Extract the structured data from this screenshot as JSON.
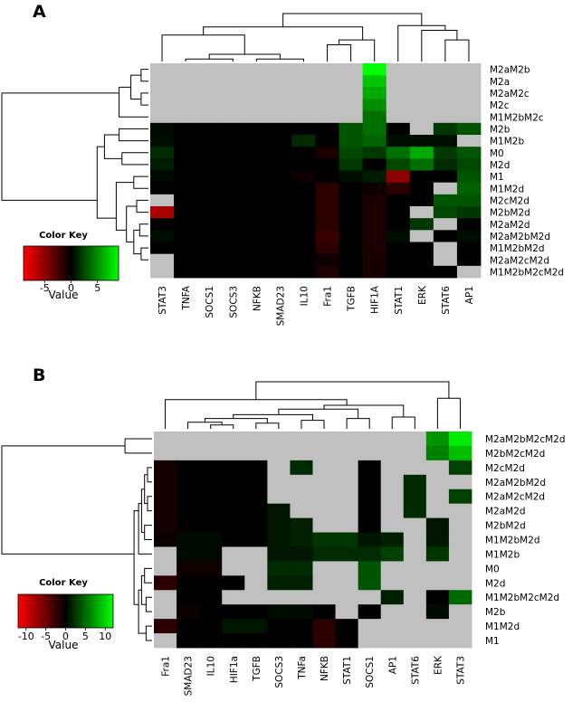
{
  "chart_data": [
    {
      "type": "heatmap",
      "panel_label": "A",
      "columns": [
        "STAT3",
        "TNFA",
        "SOCS1",
        "SOCS3",
        "NFKB",
        "SMAD23",
        "IL10",
        "Fra1",
        "TGFB",
        "HIF1A",
        "STAT1",
        "ERK",
        "STAT6",
        "AP1"
      ],
      "rows": [
        "M2aM2b",
        "M2a",
        "M2aM2c",
        "M2c",
        "M1M2bM2c",
        "M2b",
        "M1M2b",
        "M0",
        "M2d",
        "M1",
        "M1M2d",
        "M2cM2d",
        "M2bM2d",
        "M2aM2d",
        "M2aM2bM2d",
        "M1M2bM2d",
        "M2aM2cM2d",
        "M1M2bM2cM2d"
      ],
      "values": [
        [
          null,
          null,
          null,
          null,
          null,
          null,
          null,
          null,
          null,
          9,
          null,
          null,
          null,
          null
        ],
        [
          null,
          null,
          null,
          null,
          null,
          null,
          null,
          null,
          null,
          7,
          null,
          null,
          null,
          null
        ],
        [
          null,
          null,
          null,
          null,
          null,
          null,
          null,
          null,
          null,
          6,
          null,
          null,
          null,
          null
        ],
        [
          null,
          null,
          null,
          null,
          null,
          null,
          null,
          null,
          null,
          5,
          null,
          null,
          null,
          null
        ],
        [
          null,
          null,
          null,
          null,
          null,
          null,
          null,
          null,
          null,
          4,
          null,
          null,
          null,
          null
        ],
        [
          0.3,
          0,
          0,
          0,
          0,
          0,
          0,
          0,
          3,
          4,
          0,
          null,
          2,
          3
        ],
        [
          0.5,
          0,
          0,
          0,
          0,
          0,
          1.5,
          0,
          3,
          3.5,
          0.5,
          0.5,
          0.5,
          null
        ],
        [
          1.5,
          0,
          0,
          0,
          0,
          0,
          0,
          -1,
          2.5,
          2,
          4,
          6,
          2,
          3
        ],
        [
          1,
          0,
          0,
          0,
          0,
          0,
          0,
          0,
          2,
          0,
          2.5,
          4,
          1.5,
          2.5
        ],
        [
          0.3,
          0,
          0,
          0,
          0,
          0,
          -0.5,
          0,
          0.5,
          1,
          -5,
          0,
          0,
          3
        ],
        [
          0,
          0,
          0,
          0,
          0,
          0,
          0,
          -1.5,
          0,
          -0.5,
          -1.5,
          0,
          null,
          3.5
        ],
        [
          null,
          0,
          0,
          0,
          0,
          0,
          0,
          -1.5,
          0,
          -1,
          0,
          0,
          3,
          3
        ],
        [
          -6,
          0,
          0,
          0,
          0,
          0,
          0,
          -1.5,
          0,
          -1,
          0,
          null,
          2.5,
          2
        ],
        [
          0,
          0,
          0,
          0,
          0,
          0,
          0,
          -1.5,
          0,
          -1,
          0,
          2,
          null,
          0
        ],
        [
          0.5,
          0,
          0,
          0,
          0,
          0,
          0,
          -2,
          0,
          -1,
          0.5,
          null,
          0,
          0.5
        ],
        [
          0,
          0,
          0,
          0,
          0,
          0,
          0,
          -1.5,
          0,
          -1,
          0,
          0,
          null,
          0
        ],
        [
          null,
          0,
          0,
          0,
          0,
          0,
          0,
          -0.5,
          0,
          -0.8,
          0,
          0,
          null,
          0
        ],
        [
          null,
          0,
          0,
          0,
          0,
          0,
          0,
          -1,
          0,
          -0.8,
          0,
          0,
          0,
          null
        ]
      ],
      "color_key": {
        "title": "Color Key",
        "xlabel": "Value",
        "ticks": [
          -5,
          0,
          5
        ],
        "range": [
          -9,
          9
        ]
      },
      "colors": {
        "low": "#ff0000",
        "mid": "#000000",
        "high": "#00ff00",
        "missing": "#c0c0c0"
      }
    },
    {
      "type": "heatmap",
      "panel_label": "B",
      "columns": [
        "Fra1",
        "SMAD23",
        "IL10",
        "HIF1a",
        "TGFB",
        "SOCS3",
        "TNFa",
        "NFKB",
        "STAT1",
        "SOCS1",
        "AP1",
        "STAT6",
        "ERK",
        "STAT3"
      ],
      "rows": [
        "M2aM2bM2cM2d",
        "M2bM2cM2d",
        "M2cM2d",
        "M2aM2bM2d",
        "M2aM2cM2d",
        "M2aM2d",
        "M2bM2d",
        "M1M2bM2d",
        "M1M2b",
        "M0",
        "M2d",
        "M1M2bM2cM2d",
        "M2b",
        "M1M2d",
        "M1"
      ],
      "values": [
        [
          null,
          null,
          null,
          null,
          null,
          null,
          null,
          null,
          null,
          null,
          null,
          null,
          7,
          11
        ],
        [
          null,
          null,
          null,
          null,
          null,
          null,
          null,
          null,
          null,
          null,
          null,
          null,
          6,
          9
        ],
        [
          -1,
          0,
          0,
          0,
          0,
          null,
          2,
          null,
          null,
          0,
          null,
          null,
          null,
          3
        ],
        [
          -1,
          0,
          0,
          0,
          0,
          null,
          null,
          null,
          null,
          0,
          null,
          2,
          null,
          null
        ],
        [
          -1,
          0,
          0,
          0,
          0,
          null,
          null,
          null,
          null,
          0,
          null,
          2,
          null,
          3
        ],
        [
          -1,
          0,
          0,
          0,
          0,
          1,
          null,
          null,
          null,
          0,
          null,
          2,
          null,
          null
        ],
        [
          -1,
          0,
          0,
          0,
          0,
          1,
          1.5,
          null,
          null,
          0,
          null,
          null,
          1,
          null
        ],
        [
          -0.5,
          0.5,
          0.5,
          0,
          0,
          1,
          1.5,
          2.5,
          2.5,
          1,
          1.5,
          null,
          1,
          null
        ],
        [
          null,
          0.5,
          0.5,
          null,
          null,
          1,
          1,
          2,
          2,
          2,
          3,
          null,
          2.5,
          null
        ],
        [
          null,
          -0.8,
          -0.8,
          null,
          null,
          2,
          2,
          null,
          null,
          4,
          null,
          null,
          null,
          null
        ],
        [
          -2,
          0,
          0,
          0,
          null,
          1.5,
          1.5,
          null,
          null,
          4,
          null,
          null,
          null,
          null
        ],
        [
          null,
          0,
          0,
          null,
          null,
          null,
          null,
          null,
          null,
          null,
          1.5,
          null,
          0,
          5
        ],
        [
          null,
          -0.5,
          0,
          0,
          0,
          0.5,
          0.5,
          0,
          null,
          0,
          null,
          null,
          0.5,
          null
        ],
        [
          -2,
          0,
          0,
          1,
          1,
          0,
          0,
          -2,
          0,
          null,
          null,
          null,
          null,
          null
        ],
        [
          null,
          0,
          0,
          0,
          0,
          0,
          0,
          -2,
          0,
          null,
          null,
          null,
          null,
          null
        ]
      ],
      "color_key": {
        "title": "Color Key",
        "xlabel": "Value",
        "ticks": [
          -10,
          -5,
          0,
          5,
          10
        ],
        "range": [
          -12,
          12
        ]
      },
      "colors": {
        "low": "#ff0000",
        "mid": "#000000",
        "high": "#00ff00",
        "missing": "#c0c0c0"
      }
    }
  ]
}
